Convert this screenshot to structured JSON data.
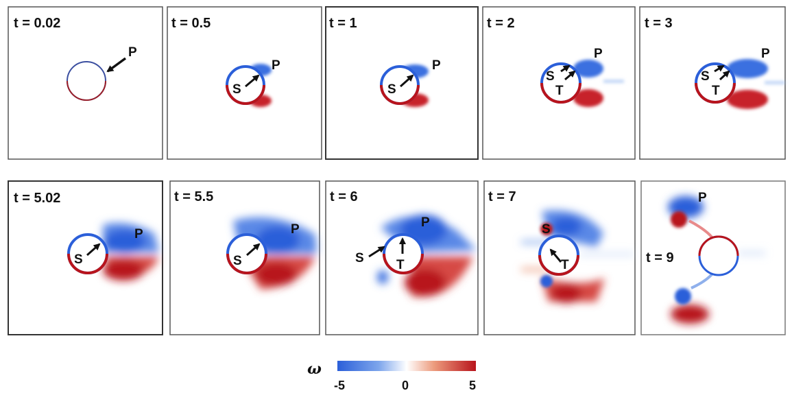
{
  "figure": {
    "panels": [
      {
        "time": "t = 0.02",
        "labels": [
          "P"
        ]
      },
      {
        "time": "t = 0.5",
        "labels": [
          "P",
          "S"
        ]
      },
      {
        "time": "t = 1",
        "labels": [
          "P",
          "S"
        ]
      },
      {
        "time": "t = 2",
        "labels": [
          "P",
          "S",
          "T"
        ]
      },
      {
        "time": "t = 3",
        "labels": [
          "P",
          "S",
          "T"
        ]
      },
      {
        "time": "t = 5.02",
        "labels": [
          "P",
          "S"
        ]
      },
      {
        "time": "t = 5.5",
        "labels": [
          "P",
          "S"
        ]
      },
      {
        "time": "t = 6",
        "labels": [
          "P",
          "S",
          "T"
        ]
      },
      {
        "time": "t = 7",
        "labels": [
          "S",
          "T"
        ]
      },
      {
        "time": "t = 9",
        "labels": [
          "P"
        ]
      }
    ],
    "colorbar": {
      "symbol": "ω",
      "ticks": [
        "-5",
        "0",
        "5"
      ],
      "min": -5,
      "max": 5,
      "colors": {
        "negative": "#2b5fd9",
        "zero": "#ffffff",
        "positive": "#b8141c"
      }
    }
  }
}
